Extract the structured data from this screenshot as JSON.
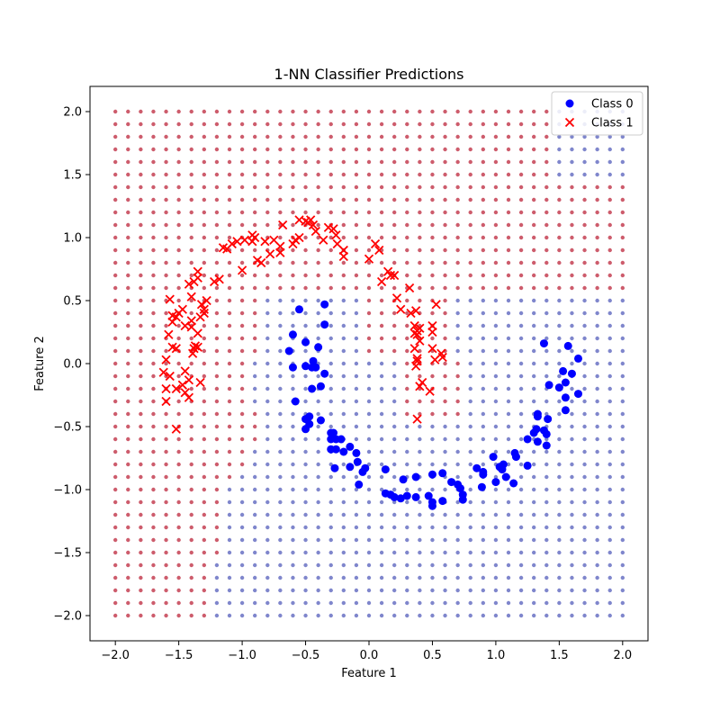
{
  "chart_data": {
    "type": "scatter",
    "title": "1-NN Classifier Predictions",
    "xlabel": "Feature 1",
    "ylabel": "Feature 2",
    "xlim": [
      -2.2,
      2.2
    ],
    "ylim": [
      -2.2,
      2.2
    ],
    "xticks": [
      -2.0,
      -1.5,
      -1.0,
      -0.5,
      0.0,
      0.5,
      1.0,
      1.5,
      2.0
    ],
    "yticks": [
      -2.0,
      -1.5,
      -1.0,
      -0.5,
      0.0,
      0.5,
      1.0,
      1.5,
      2.0
    ],
    "xtick_labels": [
      "−2.0",
      "−1.5",
      "−1.0",
      "−0.5",
      "0.0",
      "0.5",
      "1.0",
      "1.5",
      "2.0"
    ],
    "ytick_labels": [
      "−2.0",
      "−1.5",
      "−1.0",
      "−0.5",
      "0.0",
      "0.5",
      "1.0",
      "1.5",
      "2.0"
    ],
    "grid": false,
    "legend_position": "top-right",
    "decision_grid": {
      "x_start": -2.0,
      "x_end": 2.0,
      "y_start": -2.0,
      "y_end": 2.0,
      "step": 0.1,
      "class1_color": "#cd5c6c",
      "class0_color": "#7f86cc",
      "boundary_class1_max_x_by_y": [
        {
          "y": -2.0,
          "x": -1.3
        },
        {
          "y": -1.9,
          "x": -1.3
        },
        {
          "y": -1.8,
          "x": -1.3
        },
        {
          "y": -1.7,
          "x": -1.3
        },
        {
          "y": -1.6,
          "x": -1.3
        },
        {
          "y": -1.5,
          "x": -1.2
        },
        {
          "y": -1.4,
          "x": -1.2
        },
        {
          "y": -1.3,
          "x": -1.2
        },
        {
          "y": -1.2,
          "x": -1.2
        },
        {
          "y": -1.1,
          "x": -1.2
        },
        {
          "y": -1.0,
          "x": -1.2
        },
        {
          "y": -0.9,
          "x": -1.1
        },
        {
          "y": -0.8,
          "x": -1.0
        },
        {
          "y": -0.7,
          "x": -1.0
        },
        {
          "y": -0.6,
          "x": -0.9
        },
        {
          "y": -0.5,
          "x": -0.9
        },
        {
          "y": -0.4,
          "x": -0.9
        },
        {
          "y": -0.3,
          "x": -1.0
        },
        {
          "y": -0.2,
          "x": -1.0
        },
        {
          "y": -0.1,
          "x": -1.0
        },
        {
          "y": 0.0,
          "x": -1.0
        },
        {
          "y": 0.1,
          "x": -0.9
        },
        {
          "y": 0.2,
          "x": -0.9
        },
        {
          "y": 0.3,
          "x": -0.9
        },
        {
          "y": 0.4,
          "x": -0.9
        },
        {
          "y": 0.5,
          "x": -0.9
        },
        {
          "y": 0.6,
          "x": 2.0
        },
        {
          "y": 0.7,
          "x": 2.0
        },
        {
          "y": 0.8,
          "x": 2.0
        },
        {
          "y": 0.9,
          "x": 2.0
        },
        {
          "y": 1.0,
          "x": 2.0
        },
        {
          "y": 1.1,
          "x": 2.0
        },
        {
          "y": 1.2,
          "x": 2.0
        },
        {
          "y": 1.3,
          "x": 2.0
        },
        {
          "y": 1.4,
          "x": 2.0
        },
        {
          "y": 1.5,
          "x": 1.4
        },
        {
          "y": 1.6,
          "x": 1.4
        },
        {
          "y": 1.7,
          "x": 1.4
        },
        {
          "y": 1.8,
          "x": 1.4
        },
        {
          "y": 1.9,
          "x": 1.4
        },
        {
          "y": 2.0,
          "x": 1.4
        }
      ],
      "class1_islands": [
        {
          "x_min": 0.0,
          "x_max": 0.6,
          "y_min": 0.1,
          "y_max": 0.5
        },
        {
          "x_min": 0.3,
          "x_max": 0.7,
          "y_min": -0.4,
          "y_max": 0.0
        }
      ]
    },
    "series": [
      {
        "name": "Class 0",
        "marker": "circle",
        "color": "#0000ff",
        "points": [
          [
            -0.6,
            0.23
          ],
          [
            -0.55,
            0.43
          ],
          [
            -0.35,
            0.47
          ],
          [
            -0.63,
            0.1
          ],
          [
            -0.5,
            0.17
          ],
          [
            -0.35,
            0.31
          ],
          [
            -0.6,
            -0.03
          ],
          [
            -0.5,
            -0.02
          ],
          [
            -0.45,
            -0.03
          ],
          [
            -0.42,
            -0.03
          ],
          [
            -0.44,
            0.02
          ],
          [
            -0.4,
            0.13
          ],
          [
            -0.35,
            -0.08
          ],
          [
            -0.58,
            -0.3
          ],
          [
            -0.45,
            -0.2
          ],
          [
            -0.38,
            -0.18
          ],
          [
            -0.5,
            -0.44
          ],
          [
            -0.47,
            -0.42
          ],
          [
            -0.47,
            -0.48
          ],
          [
            -0.5,
            -0.52
          ],
          [
            -0.38,
            -0.45
          ],
          [
            -0.3,
            -0.55
          ],
          [
            -0.28,
            -0.55
          ],
          [
            -0.3,
            -0.6
          ],
          [
            -0.26,
            -0.6
          ],
          [
            -0.22,
            -0.6
          ],
          [
            -0.3,
            -0.68
          ],
          [
            -0.26,
            -0.68
          ],
          [
            -0.2,
            -0.7
          ],
          [
            -0.15,
            -0.66
          ],
          [
            -0.1,
            -0.71
          ],
          [
            -0.27,
            -0.83
          ],
          [
            -0.15,
            -0.82
          ],
          [
            -0.09,
            -0.78
          ],
          [
            -0.05,
            -0.86
          ],
          [
            -0.03,
            -0.83
          ],
          [
            -0.08,
            -0.96
          ],
          [
            0.13,
            -0.84
          ],
          [
            0.27,
            -0.92
          ],
          [
            0.37,
            -0.9
          ],
          [
            0.5,
            -0.88
          ],
          [
            0.58,
            -0.87
          ],
          [
            0.13,
            -1.03
          ],
          [
            0.17,
            -1.04
          ],
          [
            0.2,
            -1.06
          ],
          [
            0.25,
            -1.07
          ],
          [
            0.3,
            -1.05
          ],
          [
            0.37,
            -1.06
          ],
          [
            0.47,
            -1.05
          ],
          [
            0.5,
            -1.1
          ],
          [
            0.5,
            -1.13
          ],
          [
            0.58,
            -1.09
          ],
          [
            0.65,
            -0.94
          ],
          [
            0.7,
            -0.96
          ],
          [
            0.72,
            -0.99
          ],
          [
            0.74,
            -1.04
          ],
          [
            0.74,
            -1.08
          ],
          [
            0.85,
            -0.83
          ],
          [
            0.9,
            -0.86
          ],
          [
            0.9,
            -0.88
          ],
          [
            0.89,
            -0.98
          ],
          [
            0.98,
            -0.74
          ],
          [
            1.03,
            -0.82
          ],
          [
            1.06,
            -0.8
          ],
          [
            1.05,
            -0.84
          ],
          [
            1.0,
            -0.94
          ],
          [
            1.08,
            -0.9
          ],
          [
            1.14,
            -0.95
          ],
          [
            1.15,
            -0.71
          ],
          [
            1.16,
            -0.74
          ],
          [
            1.25,
            -0.81
          ],
          [
            1.25,
            -0.6
          ],
          [
            1.3,
            -0.55
          ],
          [
            1.32,
            -0.52
          ],
          [
            1.33,
            -0.62
          ],
          [
            1.33,
            -0.4
          ],
          [
            1.33,
            -0.42
          ],
          [
            1.38,
            -0.53
          ],
          [
            1.4,
            -0.65
          ],
          [
            1.4,
            -0.56
          ],
          [
            1.41,
            -0.44
          ],
          [
            1.38,
            0.16
          ],
          [
            1.42,
            -0.17
          ],
          [
            1.5,
            -0.19
          ],
          [
            1.53,
            -0.06
          ],
          [
            1.55,
            -0.15
          ],
          [
            1.55,
            -0.27
          ],
          [
            1.55,
            -0.37
          ],
          [
            1.57,
            0.14
          ],
          [
            1.6,
            -0.08
          ],
          [
            1.65,
            0.04
          ],
          [
            1.65,
            -0.24
          ]
        ]
      },
      {
        "name": "Class 1",
        "marker": "x",
        "color": "#ff0000",
        "points": [
          [
            -1.57,
            0.51
          ],
          [
            -1.5,
            0.4
          ],
          [
            -1.55,
            0.33
          ],
          [
            -1.55,
            0.38
          ],
          [
            -1.47,
            0.43
          ],
          [
            -1.52,
            0.37
          ],
          [
            -1.45,
            0.3
          ],
          [
            -1.4,
            0.29
          ],
          [
            -1.4,
            0.34
          ],
          [
            -1.4,
            0.53
          ],
          [
            -1.42,
            0.63
          ],
          [
            -1.38,
            0.65
          ],
          [
            -1.35,
            0.68
          ],
          [
            -1.35,
            0.73
          ],
          [
            -1.32,
            0.47
          ],
          [
            -1.3,
            0.43
          ],
          [
            -1.3,
            0.4
          ],
          [
            -1.33,
            0.37
          ],
          [
            -1.28,
            0.5
          ],
          [
            -1.55,
            0.13
          ],
          [
            -1.52,
            0.12
          ],
          [
            -1.58,
            0.23
          ],
          [
            -1.6,
            0.03
          ],
          [
            -1.57,
            -0.1
          ],
          [
            -1.6,
            -0.2
          ],
          [
            -1.62,
            -0.07
          ],
          [
            -1.52,
            -0.2
          ],
          [
            -1.45,
            -0.23
          ],
          [
            -1.45,
            -0.06
          ],
          [
            -1.42,
            -0.13
          ],
          [
            -1.47,
            -0.17
          ],
          [
            -1.42,
            -0.27
          ],
          [
            -1.6,
            -0.3
          ],
          [
            -1.52,
            -0.52
          ],
          [
            -1.38,
            0.12
          ],
          [
            -1.37,
            0.14
          ],
          [
            -1.35,
            0.13
          ],
          [
            -1.39,
            0.08
          ],
          [
            -1.35,
            0.24
          ],
          [
            -1.33,
            -0.15
          ],
          [
            -1.22,
            0.65
          ],
          [
            -1.18,
            0.67
          ],
          [
            -1.15,
            0.92
          ],
          [
            -1.12,
            0.91
          ],
          [
            -1.08,
            0.95
          ],
          [
            -1.04,
            0.97
          ],
          [
            -0.98,
            0.98
          ],
          [
            -0.92,
            0.97
          ],
          [
            -0.9,
            1.0
          ],
          [
            -0.92,
            1.02
          ],
          [
            -0.85,
            0.8
          ],
          [
            -0.88,
            0.82
          ],
          [
            -0.78,
            0.87
          ],
          [
            -0.7,
            0.93
          ],
          [
            -0.7,
            0.88
          ],
          [
            -0.68,
            1.1
          ],
          [
            -0.6,
            0.95
          ],
          [
            -0.58,
            0.98
          ],
          [
            -0.55,
            1.0
          ],
          [
            -0.55,
            1.14
          ],
          [
            -0.5,
            1.13
          ],
          [
            -0.48,
            1.12
          ],
          [
            -0.46,
            1.14
          ],
          [
            -0.44,
            1.1
          ],
          [
            -0.42,
            1.05
          ],
          [
            -0.36,
            0.98
          ],
          [
            -0.32,
            1.08
          ],
          [
            -0.28,
            1.07
          ],
          [
            -0.26,
            1.02
          ],
          [
            -0.25,
            0.95
          ],
          [
            -0.2,
            0.9
          ],
          [
            -0.2,
            0.85
          ],
          [
            0.05,
            0.95
          ],
          [
            0.08,
            0.9
          ],
          [
            0.0,
            0.83
          ],
          [
            0.1,
            0.65
          ],
          [
            0.15,
            0.73
          ],
          [
            0.17,
            0.7
          ],
          [
            0.2,
            0.7
          ],
          [
            0.22,
            0.52
          ],
          [
            0.25,
            0.43
          ],
          [
            0.32,
            0.6
          ],
          [
            0.33,
            0.4
          ],
          [
            0.37,
            0.42
          ],
          [
            0.36,
            0.3
          ],
          [
            0.38,
            0.26
          ],
          [
            0.4,
            0.28
          ],
          [
            0.36,
            0.24
          ],
          [
            0.38,
            0.23
          ],
          [
            0.4,
            0.18
          ],
          [
            0.36,
            0.12
          ],
          [
            0.38,
            0.02
          ],
          [
            0.38,
            0.04
          ],
          [
            0.37,
            -0.02
          ],
          [
            0.4,
            -0.18
          ],
          [
            0.38,
            -0.44
          ],
          [
            0.42,
            -0.15
          ],
          [
            0.5,
            0.3
          ],
          [
            0.5,
            0.25
          ],
          [
            0.5,
            0.12
          ],
          [
            0.52,
            0.03
          ],
          [
            0.53,
            0.47
          ],
          [
            0.57,
            0.08
          ],
          [
            0.58,
            0.05
          ],
          [
            0.48,
            -0.22
          ],
          [
            -1.0,
            0.74
          ],
          [
            -0.82,
            0.97
          ],
          [
            -0.75,
            0.98
          ]
        ]
      }
    ]
  }
}
